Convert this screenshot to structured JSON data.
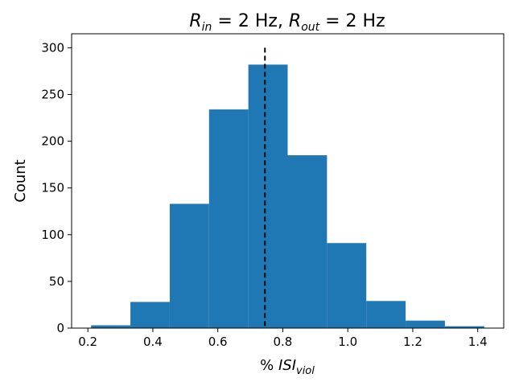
{
  "chart_data": {
    "type": "bar",
    "subtype": "histogram",
    "title": {
      "r_symbol": "R",
      "in_sub": "in",
      "in_value": " = 2 Hz, ",
      "out_sub": "out",
      "out_value": " = 2 Hz"
    },
    "xlabel": {
      "prefix": "% ",
      "main": "ISI",
      "sub": "viol"
    },
    "ylabel": "Count",
    "xlim": [
      0.15,
      1.48
    ],
    "ylim": [
      0,
      315
    ],
    "xticks": [
      "0.2",
      "0.4",
      "0.6",
      "0.8",
      "1.0",
      "1.2",
      "1.4"
    ],
    "yticks": [
      "0",
      "50",
      "100",
      "150",
      "200",
      "250",
      "300"
    ],
    "bin_edges": [
      0.21,
      0.331,
      0.452,
      0.573,
      0.694,
      0.815,
      0.936,
      1.057,
      1.178,
      1.299,
      1.42
    ],
    "counts": [
      3,
      28,
      133,
      234,
      282,
      185,
      91,
      29,
      8,
      2
    ],
    "bar_color": "#1f77b4",
    "reference_line": {
      "x": 0.745,
      "y_top": 300,
      "style": "dashed",
      "color": "#000000"
    },
    "grid": false,
    "legend": "none"
  }
}
